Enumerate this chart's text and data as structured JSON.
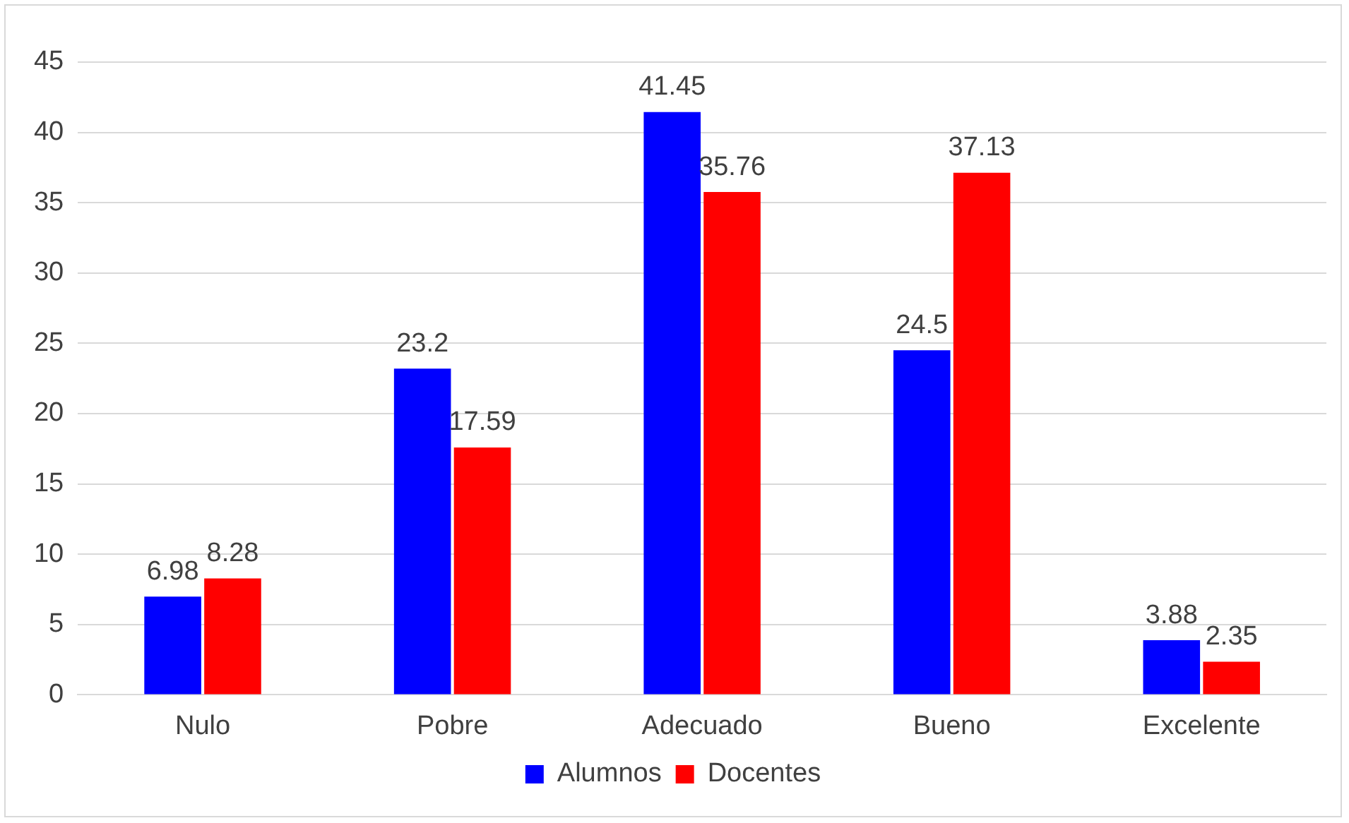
{
  "chart_data": {
    "type": "bar",
    "categories": [
      "Nulo",
      "Pobre",
      "Adecuado",
      "Bueno",
      "Excelente"
    ],
    "series": [
      {
        "name": "Alumnos",
        "color": "#0000ff",
        "values": [
          6.98,
          23.2,
          41.45,
          24.5,
          3.88
        ]
      },
      {
        "name": "Docentes",
        "color": "#ff0000",
        "values": [
          8.28,
          17.59,
          35.76,
          37.13,
          2.35
        ]
      }
    ],
    "ylim": [
      0,
      45
    ],
    "yticks": [
      0,
      5,
      10,
      15,
      20,
      25,
      30,
      35,
      40,
      45
    ],
    "grid": "y",
    "legend": "bottom",
    "data_labels": true
  }
}
